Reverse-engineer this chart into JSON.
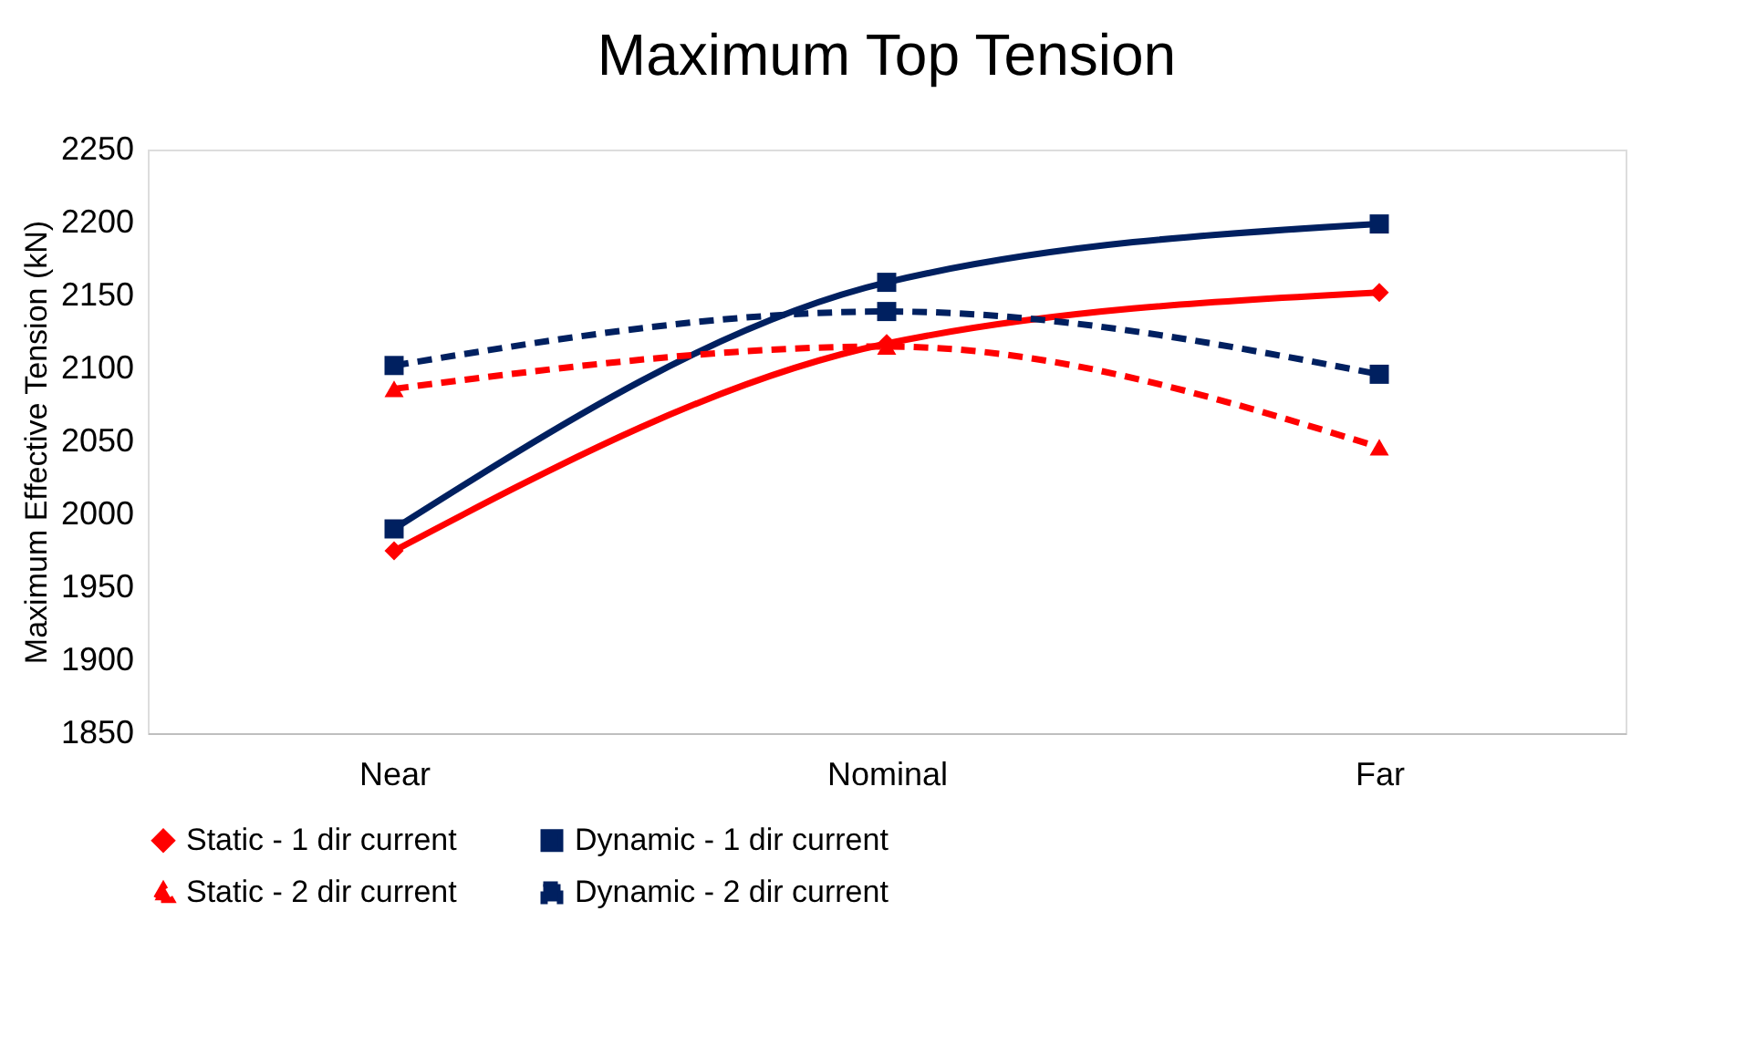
{
  "chart_data": {
    "type": "line",
    "title": "Maximum Top Tension",
    "ylabel": "Maximum Effective Tension (kN)",
    "categories": [
      "Near",
      "Nominal",
      "Far"
    ],
    "series": [
      {
        "name": "Static - 1 dir current",
        "color": "#ff0000",
        "values": [
          1975,
          2117,
          2152
        ],
        "marker": "diamond",
        "line_style": "solid"
      },
      {
        "name": "Dynamic - 1 dir current",
        "color": "#002060",
        "values": [
          1990,
          2159,
          2199
        ],
        "marker": "square",
        "line_style": "solid"
      },
      {
        "name": "Static - 2 dir current",
        "color": "#ff0000",
        "values": [
          2086,
          2115,
          2046
        ],
        "marker": "triangle",
        "line_style": "dashed"
      },
      {
        "name": "Dynamic - 2 dir current",
        "color": "#002060",
        "values": [
          2102,
          2139,
          2096
        ],
        "marker": "square",
        "line_style": "dashed"
      }
    ],
    "ylim": [
      1850,
      2250
    ],
    "yticks": [
      1850,
      1900,
      1950,
      2000,
      2050,
      2100,
      2150,
      2200,
      2250
    ],
    "grid": false,
    "legend": "bottom"
  }
}
